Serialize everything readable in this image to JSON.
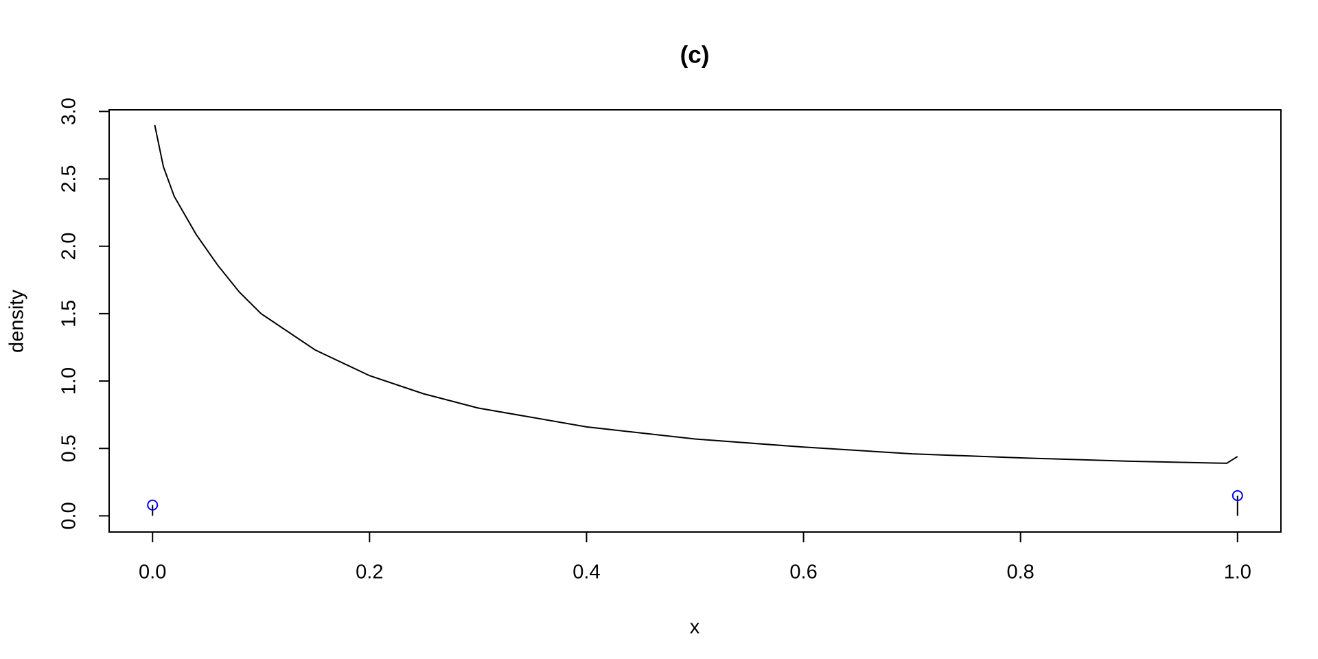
{
  "chart_data": {
    "type": "line",
    "title": "(c)",
    "x_label": "x",
    "y_label": "density",
    "x": [
      0.002,
      0.01,
      0.02,
      0.04,
      0.06,
      0.08,
      0.1,
      0.15,
      0.2,
      0.25,
      0.3,
      0.4,
      0.5,
      0.6,
      0.7,
      0.8,
      0.9,
      0.99,
      1.0
    ],
    "series": [
      {
        "color": "#000000",
        "values": [
          2.9,
          2.59,
          2.37,
          2.09,
          1.86,
          1.66,
          1.5,
          1.23,
          1.04,
          0.905,
          0.8,
          0.66,
          0.57,
          0.51,
          0.46,
          0.43,
          0.405,
          0.39,
          0.44
        ]
      }
    ],
    "point_masses": {
      "x": [
        0,
        1
      ],
      "values": [
        0.08,
        0.15
      ],
      "color": "#0000ff"
    },
    "xlim": [
      -0.04,
      1.04
    ],
    "ylim": [
      -0.12,
      3.012
    ],
    "xticks": [
      {
        "value": 0,
        "label": "0.0"
      },
      0.2,
      0.4,
      0.6,
      0.8,
      {
        "value": 1,
        "label": "1.0"
      }
    ],
    "yticks": [
      {
        "value": 0,
        "label": "0.0"
      },
      0.5,
      {
        "value": 1,
        "label": "1.0"
      },
      1.5,
      {
        "value": 2,
        "label": "2.0"
      },
      2.5,
      {
        "value": 3,
        "label": "3.0"
      }
    ]
  }
}
